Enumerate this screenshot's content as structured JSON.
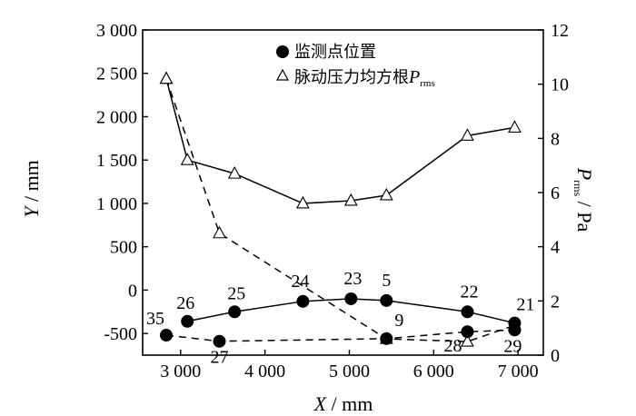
{
  "chart_data": {
    "type": "line",
    "xlabel": {
      "symbol": "X",
      "unit": " / mm"
    },
    "ylabel_left": {
      "symbol": "Y",
      "unit": " / mm"
    },
    "ylabel_right": {
      "symbol": "P",
      "sub": "rms",
      "unit": " / Pa"
    },
    "xlim": [
      2550,
      7300
    ],
    "ylim_left": [
      -750,
      3000
    ],
    "ylim_right": [
      0,
      12
    ],
    "x_ticks": [
      3000,
      4000,
      5000,
      6000,
      7000
    ],
    "x_tick_labels": [
      "3 000",
      "4 000",
      "5 000",
      "6 000",
      "7 000"
    ],
    "y_left_ticks": [
      -500,
      0,
      500,
      1000,
      1500,
      2000,
      2500,
      3000
    ],
    "y_left_tick_labels": [
      "-500",
      "0",
      "500",
      "1 000",
      "1 500",
      "2 000",
      "2 500",
      "3 000"
    ],
    "y_right_ticks": [
      0,
      2,
      4,
      6,
      8,
      10,
      12
    ],
    "y_right_tick_labels": [
      "0",
      "2",
      "4",
      "6",
      "8",
      "10",
      "12"
    ],
    "legend": {
      "placement": "top-center",
      "entries": [
        {
          "marker": "filled-circle",
          "label": "监测点位置"
        },
        {
          "marker": "open-triangle",
          "label": "脉动压力均方根",
          "label_symbol": "P",
          "label_sub": "rms"
        }
      ]
    },
    "series": [
      {
        "name": "监测点位置",
        "axis": "left",
        "marker": "filled-circle",
        "points": [
          {
            "label": "35",
            "x": 2830,
            "y": -520
          },
          {
            "label": "26",
            "x": 3080,
            "y": -360
          },
          {
            "label": "27",
            "x": 3460,
            "y": -590
          },
          {
            "label": "25",
            "x": 3640,
            "y": -250
          },
          {
            "label": "24",
            "x": 4450,
            "y": -130
          },
          {
            "label": "23",
            "x": 5020,
            "y": -100
          },
          {
            "label": "5",
            "x": 5440,
            "y": -120
          },
          {
            "label": "9",
            "x": 5440,
            "y": -560
          },
          {
            "label": "22",
            "x": 6400,
            "y": -250
          },
          {
            "label": "28",
            "x": 6400,
            "y": -480
          },
          {
            "label": "21",
            "x": 6960,
            "y": -380
          },
          {
            "label": "29",
            "x": 6960,
            "y": -460
          }
        ],
        "upper_path": [
          "26",
          "25",
          "24",
          "23",
          "5",
          "22",
          "21"
        ],
        "lower_path_dashed": [
          "35",
          "27",
          "9",
          "28",
          "29"
        ]
      },
      {
        "name": "脉动压力均方根Prms (upper points)",
        "axis": "right",
        "marker": "open-triangle",
        "line": "solid",
        "x": [
          2830,
          3080,
          3640,
          4450,
          5020,
          5440,
          6400,
          6960
        ],
        "values": [
          10.2,
          7.2,
          6.7,
          5.6,
          5.7,
          5.9,
          8.1,
          8.4
        ]
      },
      {
        "name": "脉动压力均方根Prms (lower points)",
        "axis": "right",
        "marker": "open-triangle",
        "line": "dashed",
        "x": [
          2830,
          3460,
          5440,
          6400,
          6960
        ],
        "values": [
          10.2,
          4.5,
          0.6,
          0.5,
          1.1
        ]
      }
    ]
  }
}
